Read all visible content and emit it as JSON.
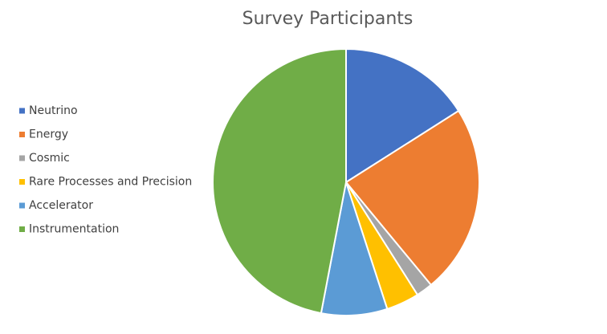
{
  "chart_data": {
    "type": "pie",
    "title": "Survey Participants",
    "categories": [
      "Neutrino",
      "Energy",
      "Cosmic",
      "Rare Processes and Precision",
      "Accelerator",
      "Instrumentation"
    ],
    "values": [
      16,
      23,
      2,
      4,
      8,
      47
    ],
    "colors": [
      "#4472c4",
      "#ed7d31",
      "#a5a5a5",
      "#ffc000",
      "#5b9bd5",
      "#70ad47"
    ],
    "legend": "left"
  }
}
